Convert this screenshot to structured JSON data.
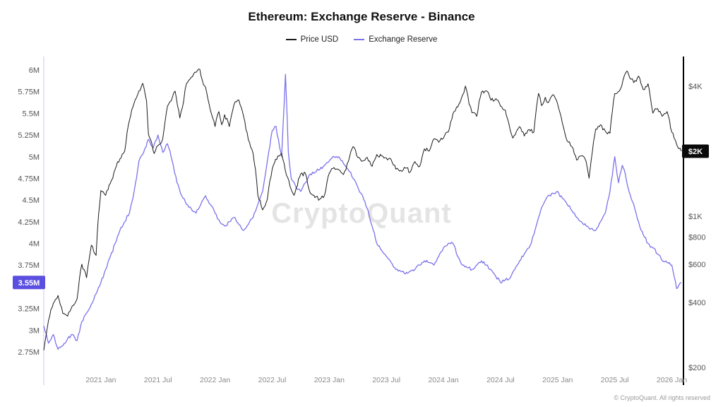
{
  "header": {
    "title": "Ethereum: Exchange Reserve - Binance"
  },
  "legend": {
    "items": [
      {
        "label": "Price USD",
        "color": "#3a3a3a"
      },
      {
        "label": "Exchange Reserve",
        "color": "#7b72e9"
      }
    ]
  },
  "watermark": {
    "text": "CryptoQuant"
  },
  "footer": {
    "copyright": "© CryptoQuant. All rights reserved"
  },
  "chart_data": {
    "type": "line",
    "title": "Ethereum: Exchange Reserve - Binance",
    "x_unit": "months since 2020-07",
    "x_ticks": [
      {
        "t": 6,
        "label": "2021 Jan"
      },
      {
        "t": 12,
        "label": "2021 Jul"
      },
      {
        "t": 18,
        "label": "2022 Jan"
      },
      {
        "t": 24,
        "label": "2022 Jul"
      },
      {
        "t": 30,
        "label": "2023 Jan"
      },
      {
        "t": 36,
        "label": "2023 Jul"
      },
      {
        "t": 42,
        "label": "2024 Jan"
      },
      {
        "t": 48,
        "label": "2024 Jul"
      },
      {
        "t": 54,
        "label": "2025 Jan"
      },
      {
        "t": 60,
        "label": "2025 Jul"
      },
      {
        "t": 66,
        "label": "2026 Jan"
      }
    ],
    "left_axis": {
      "scale": "linear",
      "unit": "ETH",
      "domain": [
        2.57,
        6.11
      ],
      "ticks": [
        {
          "value": 6,
          "label": "6M"
        },
        {
          "value": 5.75,
          "label": "5.75M"
        },
        {
          "value": 5.5,
          "label": "5.5M"
        },
        {
          "value": 5.25,
          "label": "5.25M"
        },
        {
          "value": 5,
          "label": "5M"
        },
        {
          "value": 4.75,
          "label": "4.75M"
        },
        {
          "value": 4.5,
          "label": "4.5M"
        },
        {
          "value": 4.25,
          "label": "4.25M"
        },
        {
          "value": 4,
          "label": "4M"
        },
        {
          "value": 3.75,
          "label": "3.75M"
        },
        {
          "value": 3.25,
          "label": "3.25M"
        },
        {
          "value": 3,
          "label": "3M"
        },
        {
          "value": 2.75,
          "label": "2.75M"
        }
      ]
    },
    "right_axis": {
      "scale": "log",
      "unit": "USD",
      "domain": [
        200,
        5200
      ],
      "ticks": [
        {
          "value": 4000,
          "label": "$4K"
        },
        {
          "value": 2000,
          "label": "$2K"
        },
        {
          "value": 1000,
          "label": "$1K"
        },
        {
          "value": 800,
          "label": "$800"
        },
        {
          "value": 600,
          "label": "$600"
        },
        {
          "value": 400,
          "label": "$400"
        },
        {
          "value": 200,
          "label": "$200"
        }
      ]
    },
    "series": [
      {
        "name": "Price USD",
        "axis": "right",
        "color": "#1a1a1a",
        "points": [
          [
            0,
            240
          ],
          [
            0.5,
            330
          ],
          [
            1,
            395
          ],
          [
            1.5,
            430
          ],
          [
            2,
            355
          ],
          [
            2.5,
            345
          ],
          [
            3,
            385
          ],
          [
            3.5,
            415
          ],
          [
            4,
            600
          ],
          [
            4.5,
            520
          ],
          [
            5,
            735
          ],
          [
            5.5,
            660
          ],
          [
            6,
            1315
          ],
          [
            6.5,
            1250
          ],
          [
            7,
            1420
          ],
          [
            7.5,
            1650
          ],
          [
            8,
            1840
          ],
          [
            8.5,
            2000
          ],
          [
            9,
            2775
          ],
          [
            9.6,
            3450
          ],
          [
            10.4,
            4120
          ],
          [
            10.8,
            3400
          ],
          [
            11,
            2390
          ],
          [
            11.6,
            1950
          ],
          [
            12,
            2120
          ],
          [
            12.5,
            2280
          ],
          [
            13,
            3230
          ],
          [
            13.8,
            3790
          ],
          [
            14.3,
            2850
          ],
          [
            14.7,
            3400
          ],
          [
            15,
            4120
          ],
          [
            15.5,
            4400
          ],
          [
            16,
            4630
          ],
          [
            16.4,
            4780
          ],
          [
            16.8,
            4050
          ],
          [
            17,
            3950
          ],
          [
            17.5,
            3100
          ],
          [
            18,
            2600
          ],
          [
            18.4,
            3050
          ],
          [
            18.7,
            2650
          ],
          [
            19,
            2950
          ],
          [
            19.5,
            2600
          ],
          [
            20,
            3300
          ],
          [
            20.5,
            3450
          ],
          [
            21,
            2900
          ],
          [
            21.5,
            2250
          ],
          [
            22,
            1950
          ],
          [
            22.5,
            1250
          ],
          [
            23,
            1070
          ],
          [
            23.5,
            1200
          ],
          [
            24,
            1650
          ],
          [
            24.6,
            1900
          ],
          [
            25,
            1950
          ],
          [
            25.5,
            1550
          ],
          [
            26,
            1330
          ],
          [
            26.3,
            1250
          ],
          [
            27,
            1570
          ],
          [
            27.5,
            1580
          ],
          [
            28,
            1280
          ],
          [
            28.5,
            1220
          ],
          [
            29,
            1200
          ],
          [
            29.5,
            1250
          ],
          [
            30,
            1580
          ],
          [
            30.5,
            1680
          ],
          [
            31,
            1640
          ],
          [
            31.5,
            1560
          ],
          [
            32,
            1790
          ],
          [
            32.5,
            2100
          ],
          [
            33,
            1870
          ],
          [
            33.5,
            1800
          ],
          [
            34,
            1870
          ],
          [
            34.5,
            1700
          ],
          [
            35,
            1930
          ],
          [
            35.5,
            1900
          ],
          [
            36,
            1860
          ],
          [
            36.5,
            1830
          ],
          [
            37,
            1650
          ],
          [
            37.5,
            1630
          ],
          [
            38,
            1670
          ],
          [
            38.5,
            1600
          ],
          [
            39,
            1790
          ],
          [
            39.5,
            1700
          ],
          [
            40,
            2050
          ],
          [
            40.5,
            2000
          ],
          [
            41,
            2280
          ],
          [
            41.5,
            2200
          ],
          [
            42,
            2300
          ],
          [
            42.5,
            2450
          ],
          [
            43,
            2980
          ],
          [
            43.5,
            3200
          ],
          [
            44,
            3630
          ],
          [
            44.3,
            4000
          ],
          [
            44.7,
            3300
          ],
          [
            45,
            3010
          ],
          [
            45.5,
            2900
          ],
          [
            46,
            3750
          ],
          [
            46.5,
            3800
          ],
          [
            47,
            3440
          ],
          [
            47.5,
            3500
          ],
          [
            48,
            3230
          ],
          [
            48.5,
            3100
          ],
          [
            49,
            2520
          ],
          [
            49.3,
            2300
          ],
          [
            50,
            2600
          ],
          [
            50.5,
            2350
          ],
          [
            51,
            2520
          ],
          [
            51.5,
            2450
          ],
          [
            52,
            3700
          ],
          [
            52.3,
            3250
          ],
          [
            52.7,
            3550
          ],
          [
            53,
            3350
          ],
          [
            53.5,
            3650
          ],
          [
            54,
            3300
          ],
          [
            54.5,
            2700
          ],
          [
            55,
            2230
          ],
          [
            55.5,
            2100
          ],
          [
            56,
            1820
          ],
          [
            56.5,
            1900
          ],
          [
            57,
            1790
          ],
          [
            57.3,
            1500
          ],
          [
            58,
            2530
          ],
          [
            58.5,
            2650
          ],
          [
            59,
            2480
          ],
          [
            59.5,
            2420
          ],
          [
            60,
            3690
          ],
          [
            60.5,
            3800
          ],
          [
            61,
            4450
          ],
          [
            61.3,
            4700
          ],
          [
            61.7,
            4300
          ],
          [
            62,
            4150
          ],
          [
            62.5,
            4450
          ],
          [
            63,
            3850
          ],
          [
            63.5,
            4100
          ],
          [
            64,
            3000
          ],
          [
            64.5,
            3150
          ],
          [
            65,
            2900
          ],
          [
            65.5,
            3050
          ],
          [
            66,
            2450
          ],
          [
            66.5,
            2150
          ],
          [
            67,
            2000
          ]
        ]
      },
      {
        "name": "Exchange Reserve",
        "axis": "left",
        "color": "#7b72e9",
        "points": [
          [
            0,
            3.05
          ],
          [
            0.5,
            2.85
          ],
          [
            1,
            2.95
          ],
          [
            1.5,
            2.78
          ],
          [
            2,
            2.82
          ],
          [
            2.5,
            2.9
          ],
          [
            3,
            2.95
          ],
          [
            3.5,
            2.88
          ],
          [
            4,
            3.1
          ],
          [
            4.5,
            3.2
          ],
          [
            5,
            3.3
          ],
          [
            5.5,
            3.42
          ],
          [
            6,
            3.55
          ],
          [
            6.5,
            3.7
          ],
          [
            7,
            3.85
          ],
          [
            7.5,
            4.0
          ],
          [
            8,
            4.15
          ],
          [
            8.5,
            4.25
          ],
          [
            9,
            4.35
          ],
          [
            9.5,
            4.6
          ],
          [
            10,
            4.95
          ],
          [
            10.5,
            5.05
          ],
          [
            11,
            5.2
          ],
          [
            11.5,
            5.1
          ],
          [
            12,
            5.25
          ],
          [
            12.5,
            5.05
          ],
          [
            13,
            5.15
          ],
          [
            13.5,
            4.95
          ],
          [
            14,
            4.7
          ],
          [
            14.5,
            4.55
          ],
          [
            15,
            4.45
          ],
          [
            15.5,
            4.4
          ],
          [
            16,
            4.35
          ],
          [
            16.5,
            4.45
          ],
          [
            17,
            4.55
          ],
          [
            17.5,
            4.45
          ],
          [
            18,
            4.35
          ],
          [
            18.5,
            4.25
          ],
          [
            19,
            4.2
          ],
          [
            19.5,
            4.25
          ],
          [
            20,
            4.3
          ],
          [
            20.5,
            4.22
          ],
          [
            21,
            4.15
          ],
          [
            21.5,
            4.22
          ],
          [
            22,
            4.3
          ],
          [
            22.5,
            4.45
          ],
          [
            23,
            4.6
          ],
          [
            23.5,
            4.95
          ],
          [
            24,
            5.3
          ],
          [
            24.4,
            5.35
          ],
          [
            24.8,
            5.1
          ],
          [
            25,
            5.0
          ],
          [
            25.4,
            5.95
          ],
          [
            25.7,
            5.05
          ],
          [
            26,
            4.75
          ],
          [
            26.5,
            4.65
          ],
          [
            27,
            4.6
          ],
          [
            27.5,
            4.7
          ],
          [
            28,
            4.8
          ],
          [
            28.5,
            4.82
          ],
          [
            29,
            4.85
          ],
          [
            29.5,
            4.9
          ],
          [
            30,
            4.95
          ],
          [
            30.5,
            5.0
          ],
          [
            31,
            5.0
          ],
          [
            31.5,
            4.92
          ],
          [
            32,
            4.85
          ],
          [
            32.5,
            4.75
          ],
          [
            33,
            4.65
          ],
          [
            33.5,
            4.55
          ],
          [
            34,
            4.4
          ],
          [
            34.5,
            4.2
          ],
          [
            35,
            4.0
          ],
          [
            35.5,
            3.92
          ],
          [
            36,
            3.85
          ],
          [
            36.5,
            3.78
          ],
          [
            37,
            3.7
          ],
          [
            37.5,
            3.68
          ],
          [
            38,
            3.65
          ],
          [
            38.5,
            3.68
          ],
          [
            39,
            3.7
          ],
          [
            39.5,
            3.75
          ],
          [
            40,
            3.8
          ],
          [
            40.5,
            3.78
          ],
          [
            41,
            3.75
          ],
          [
            41.5,
            3.85
          ],
          [
            42,
            3.95
          ],
          [
            42.5,
            4.0
          ],
          [
            43,
            4.0
          ],
          [
            43.5,
            3.85
          ],
          [
            44,
            3.75
          ],
          [
            44.5,
            3.72
          ],
          [
            45,
            3.7
          ],
          [
            45.5,
            3.75
          ],
          [
            46,
            3.8
          ],
          [
            46.5,
            3.75
          ],
          [
            47,
            3.7
          ],
          [
            47.5,
            3.62
          ],
          [
            48,
            3.55
          ],
          [
            48.5,
            3.58
          ],
          [
            49,
            3.6
          ],
          [
            49.5,
            3.7
          ],
          [
            50,
            3.8
          ],
          [
            50.5,
            3.88
          ],
          [
            51,
            3.95
          ],
          [
            51.5,
            4.1
          ],
          [
            52,
            4.3
          ],
          [
            52.5,
            4.45
          ],
          [
            53,
            4.55
          ],
          [
            53.5,
            4.58
          ],
          [
            54,
            4.6
          ],
          [
            54.5,
            4.52
          ],
          [
            55,
            4.45
          ],
          [
            55.5,
            4.38
          ],
          [
            56,
            4.3
          ],
          [
            56.5,
            4.25
          ],
          [
            57,
            4.2
          ],
          [
            57.5,
            4.17
          ],
          [
            58,
            4.15
          ],
          [
            58.5,
            4.25
          ],
          [
            59,
            4.35
          ],
          [
            59.5,
            4.6
          ],
          [
            60,
            5.0
          ],
          [
            60.4,
            4.7
          ],
          [
            60.8,
            4.9
          ],
          [
            61,
            4.85
          ],
          [
            61.5,
            4.6
          ],
          [
            62,
            4.45
          ],
          [
            62.5,
            4.25
          ],
          [
            63,
            4.1
          ],
          [
            63.5,
            4.0
          ],
          [
            64,
            3.95
          ],
          [
            64.5,
            3.88
          ],
          [
            65,
            3.8
          ],
          [
            65.5,
            3.78
          ],
          [
            66,
            3.75
          ],
          [
            66.5,
            3.48
          ],
          [
            67,
            3.55
          ]
        ]
      }
    ],
    "current_badges": {
      "reserve": {
        "label": "3.55M",
        "value": 3.55,
        "bg": "#5a4fe0"
      },
      "price": {
        "label": "$2K",
        "value": 2000,
        "bg": "#0a0a0a"
      }
    }
  }
}
